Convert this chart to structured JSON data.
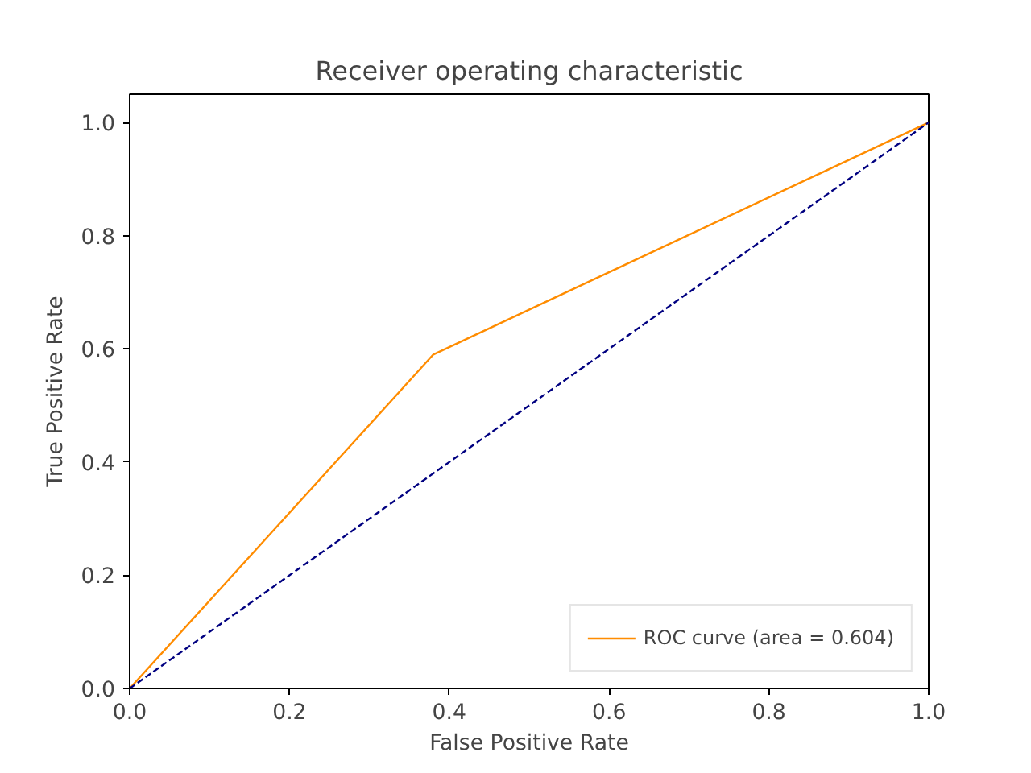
{
  "chart_data": {
    "type": "line",
    "title": "Receiver operating characteristic",
    "xlabel": "False Positive Rate",
    "ylabel": "True Positive Rate",
    "xlim": [
      0,
      1
    ],
    "ylim": [
      0,
      1.05
    ],
    "xticks": [
      {
        "value": 0,
        "label": "0.0"
      },
      {
        "value": 0.2,
        "label": "0.2"
      },
      {
        "value": 0.4,
        "label": "0.4"
      },
      {
        "value": 0.6,
        "label": "0.6"
      },
      {
        "value": 0.8,
        "label": "0.8"
      },
      {
        "value": 1,
        "label": "1.0"
      }
    ],
    "yticks": [
      {
        "value": 0,
        "label": "0.0"
      },
      {
        "value": 0.2,
        "label": "0.2"
      },
      {
        "value": 0.4,
        "label": "0.4"
      },
      {
        "value": 0.6,
        "label": "0.6"
      },
      {
        "value": 0.8,
        "label": "0.8"
      },
      {
        "value": 1,
        "label": "1.0"
      }
    ],
    "series": [
      {
        "name": "ROC curve (area = 0.604)",
        "color": "#ff8c00",
        "x": [
          0,
          0.38,
          1
        ],
        "values": [
          0,
          0.59,
          1
        ],
        "line_style": "solid"
      },
      {
        "color": "#000080",
        "x": [
          0,
          1
        ],
        "values": [
          0,
          1
        ],
        "line_style": "dashed"
      }
    ],
    "legend": "bottom right",
    "grid": false
  }
}
